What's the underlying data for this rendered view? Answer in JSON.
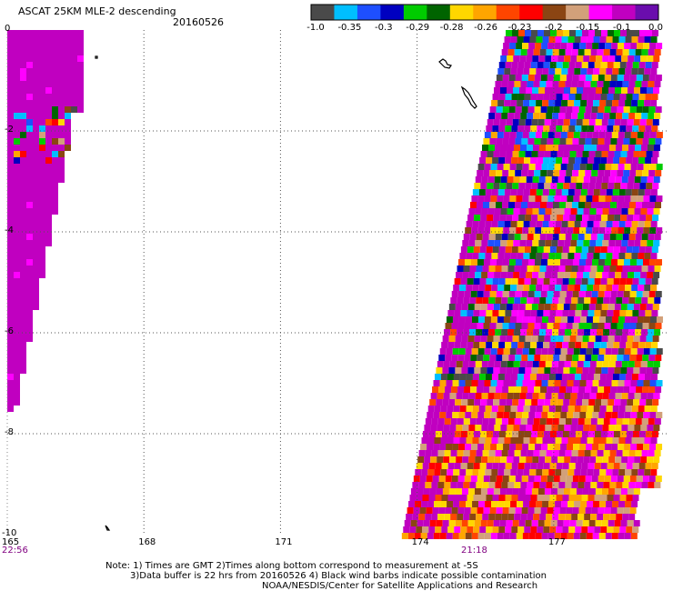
{
  "header": {
    "title": "ASCAT 25KM MLE-2 descending",
    "date": "20160526"
  },
  "colorbar": {
    "colors": [
      "#4a4a4a",
      "#00bfff",
      "#1e4fff",
      "#0000c0",
      "#00cc00",
      "#006400",
      "#ffd700",
      "#ffa500",
      "#ff4500",
      "#ff0000",
      "#8b4513",
      "#d2a07a",
      "#ff00ff",
      "#c000c0",
      "#6a0dad"
    ],
    "labels": [
      "-1.0",
      "-0.35",
      "-0.3",
      "-0.29",
      "-0.28",
      "-0.26",
      "-0.23",
      "-0.2",
      "-0.15",
      "-0.1",
      "0.0"
    ]
  },
  "axes": {
    "lon_min": 165,
    "lon_max": 179.5,
    "lat_min": -10,
    "lat_max": 0,
    "lon_ticks": [
      "165",
      "168",
      "171",
      "174",
      "177"
    ],
    "lat_ticks": [
      "0",
      "-2",
      "-4",
      "-6",
      "-8",
      "-10"
    ]
  },
  "swaths": {
    "left_time": "22:56",
    "right_time": "21:18"
  },
  "notes": {
    "line1": "Note: 1) Times are GMT 2)Times along bottom correspond to measurement at -5S",
    "line2": "3)Data buffer is 22 hrs from 20160526 4) Black wind barbs indicate possible contamination",
    "line3": "NOAA/NESDIS/Center for Satellite Applications and Research"
  }
}
